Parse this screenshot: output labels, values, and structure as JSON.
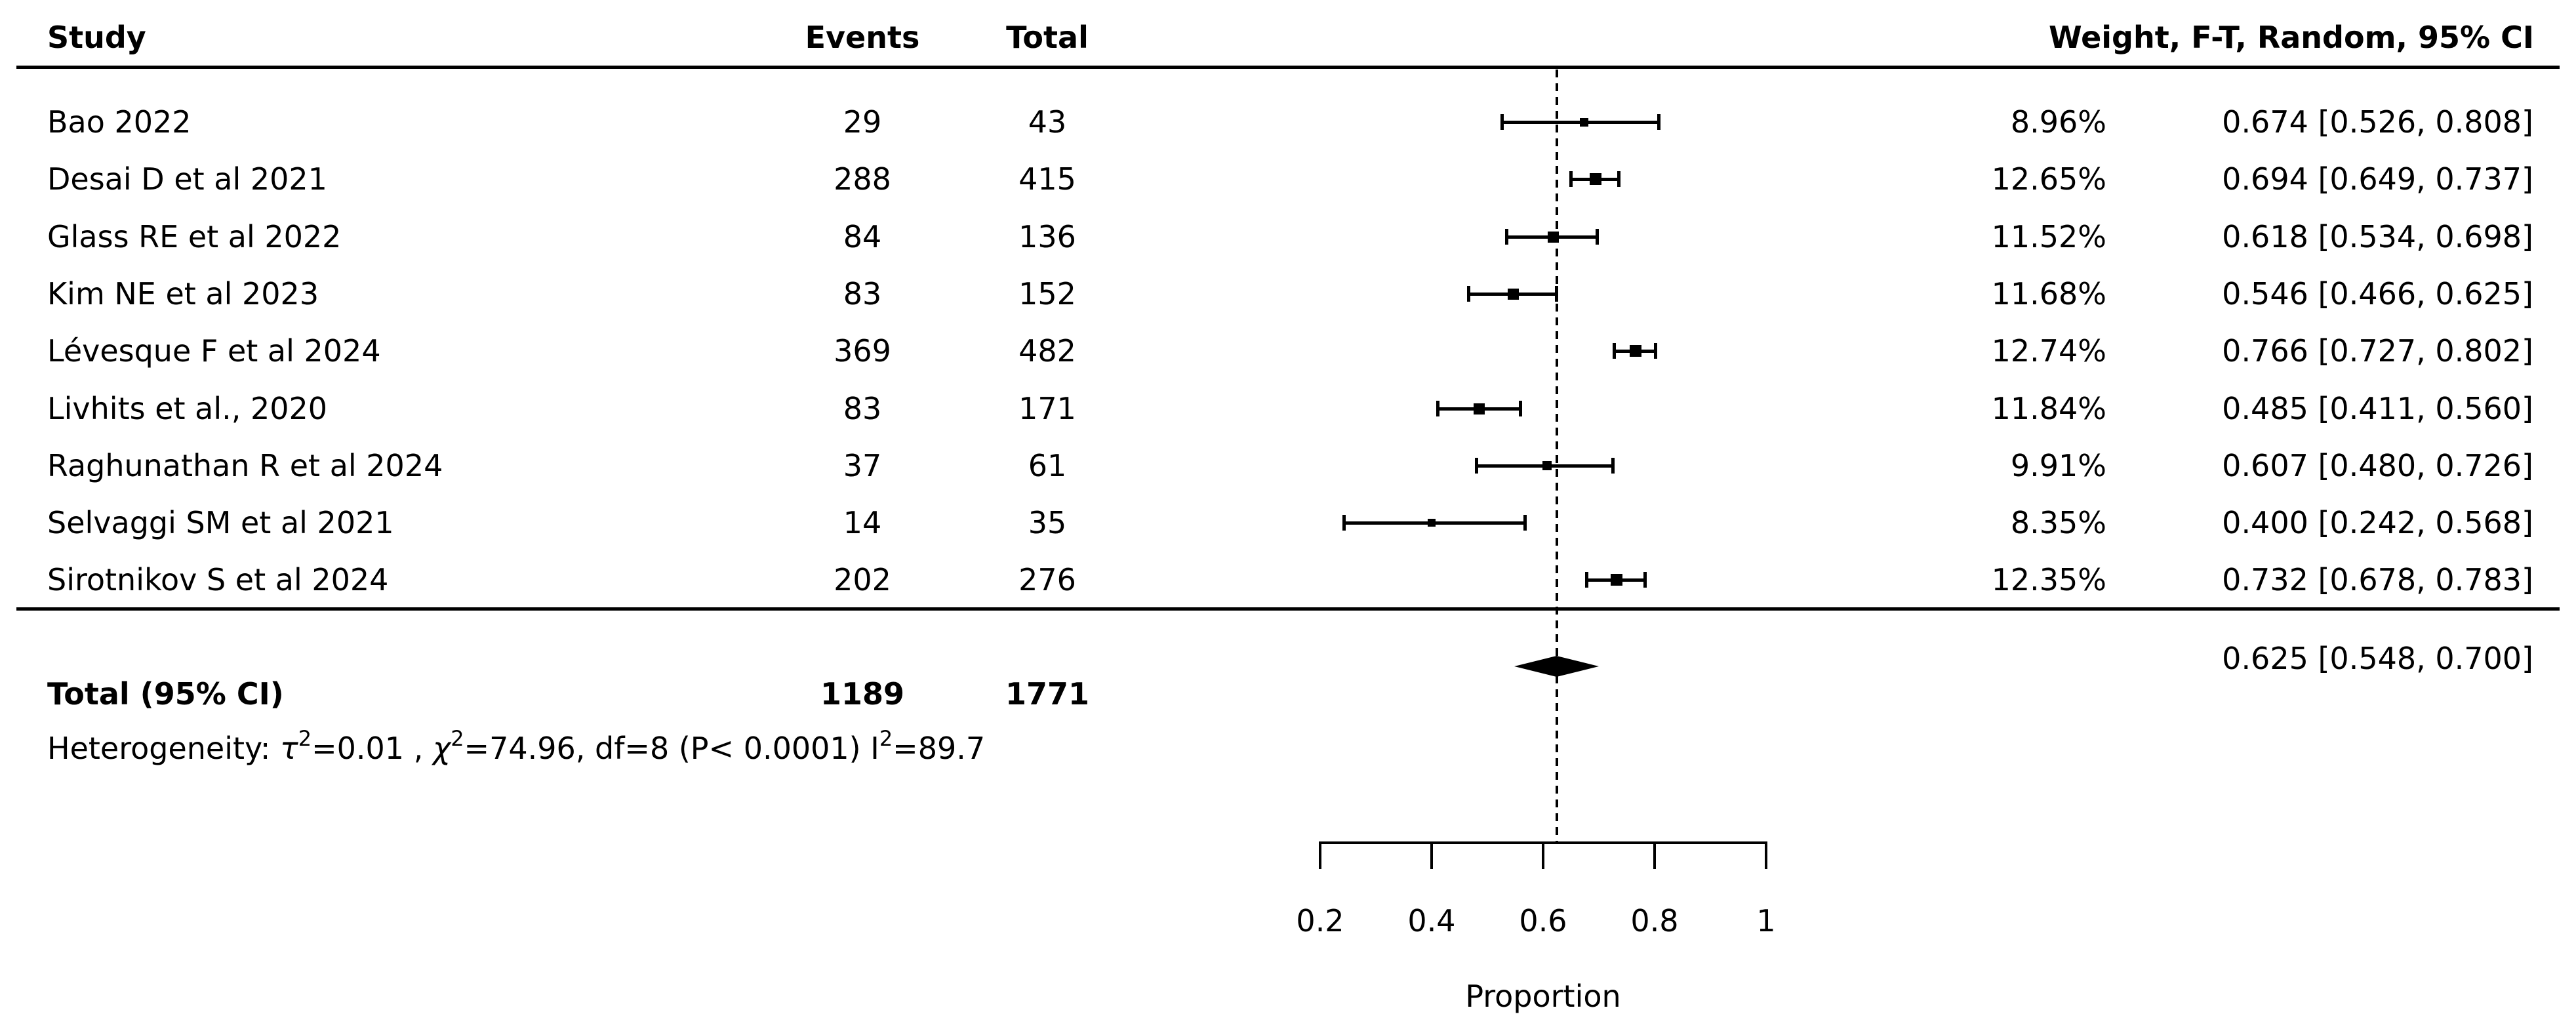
{
  "colors": {
    "foreground": "#000000",
    "background": "#ffffff"
  },
  "table": {
    "headers": {
      "study": "Study",
      "events": "Events",
      "total": "Total",
      "weight_ci": "Weight, F-T, Random, 95% CI"
    }
  },
  "heterogeneity_parts": {
    "t1": "Heterogeneity: ",
    "g1": "τ",
    "s1": "2",
    "t2": "=0.01 , ",
    "g2": "χ",
    "s2": "2",
    "t3": "=74.96, df=8 (P< 0.0001) ",
    "g3": "I",
    "s3": "2",
    "t4": "=89.7"
  },
  "chart_data": {
    "type": "scatter",
    "variant": "forest_plot",
    "title": "",
    "xlabel": "Proportion",
    "ylabel": "",
    "xlim": [
      0.2,
      1.0
    ],
    "x_ticks": [
      0.2,
      0.4,
      0.6,
      0.8,
      1
    ],
    "x_tick_labels": [
      "0.2",
      "0.4",
      "0.6",
      "0.8",
      "1"
    ],
    "reference_line": 0.625,
    "grid": false,
    "studies": [
      {
        "name": "Bao 2022",
        "events": "29",
        "total": "43",
        "weight_pct": 8.96,
        "weight_label": "8.96%",
        "est": 0.674,
        "lo": 0.526,
        "hi": 0.808,
        "ci_label": "0.674 [0.526, 0.808]"
      },
      {
        "name": "Desai D et al 2021",
        "events": "288",
        "total": "415",
        "weight_pct": 12.65,
        "weight_label": "12.65%",
        "est": 0.694,
        "lo": 0.649,
        "hi": 0.737,
        "ci_label": "0.694 [0.649, 0.737]"
      },
      {
        "name": "Glass RE et al 2022",
        "events": "84",
        "total": "136",
        "weight_pct": 11.52,
        "weight_label": "11.52%",
        "est": 0.618,
        "lo": 0.534,
        "hi": 0.698,
        "ci_label": "0.618 [0.534, 0.698]"
      },
      {
        "name": "Kim NE et al 2023",
        "events": "83",
        "total": "152",
        "weight_pct": 11.68,
        "weight_label": "11.68%",
        "est": 0.546,
        "lo": 0.466,
        "hi": 0.625,
        "ci_label": "0.546 [0.466, 0.625]"
      },
      {
        "name": "Lévesque F et al 2024",
        "events": "369",
        "total": "482",
        "weight_pct": 12.74,
        "weight_label": "12.74%",
        "est": 0.766,
        "lo": 0.727,
        "hi": 0.802,
        "ci_label": "0.766 [0.727, 0.802]"
      },
      {
        "name": "Livhits et al., 2020",
        "events": "83",
        "total": "171",
        "weight_pct": 11.84,
        "weight_label": "11.84%",
        "est": 0.485,
        "lo": 0.411,
        "hi": 0.56,
        "ci_label": "0.485 [0.411, 0.560]"
      },
      {
        "name": "Raghunathan R et al 2024",
        "events": "37",
        "total": "61",
        "weight_pct": 9.91,
        "weight_label": "9.91%",
        "est": 0.607,
        "lo": 0.48,
        "hi": 0.726,
        "ci_label": "0.607 [0.480, 0.726]"
      },
      {
        "name": "Selvaggi SM et al 2021",
        "events": "14",
        "total": "35",
        "weight_pct": 8.35,
        "weight_label": "8.35%",
        "est": 0.4,
        "lo": 0.242,
        "hi": 0.568,
        "ci_label": "0.400 [0.242, 0.568]"
      },
      {
        "name": "Sirotnikov S et al 2024",
        "events": "202",
        "total": "276",
        "weight_pct": 12.35,
        "weight_label": "12.35%",
        "est": 0.732,
        "lo": 0.678,
        "hi": 0.783,
        "ci_label": "0.732 [0.678, 0.783]"
      }
    ],
    "pooled": {
      "label": "Total (95% CI)",
      "events": "1189",
      "total": "1771",
      "est": 0.625,
      "lo": 0.548,
      "hi": 0.7,
      "ci_label": "0.625 [0.548, 0.700]"
    },
    "heterogeneity_text": "Heterogeneity: τ2=0.01 , χ2=74.96, df=8 (P< 0.0001) I2=89.7"
  }
}
